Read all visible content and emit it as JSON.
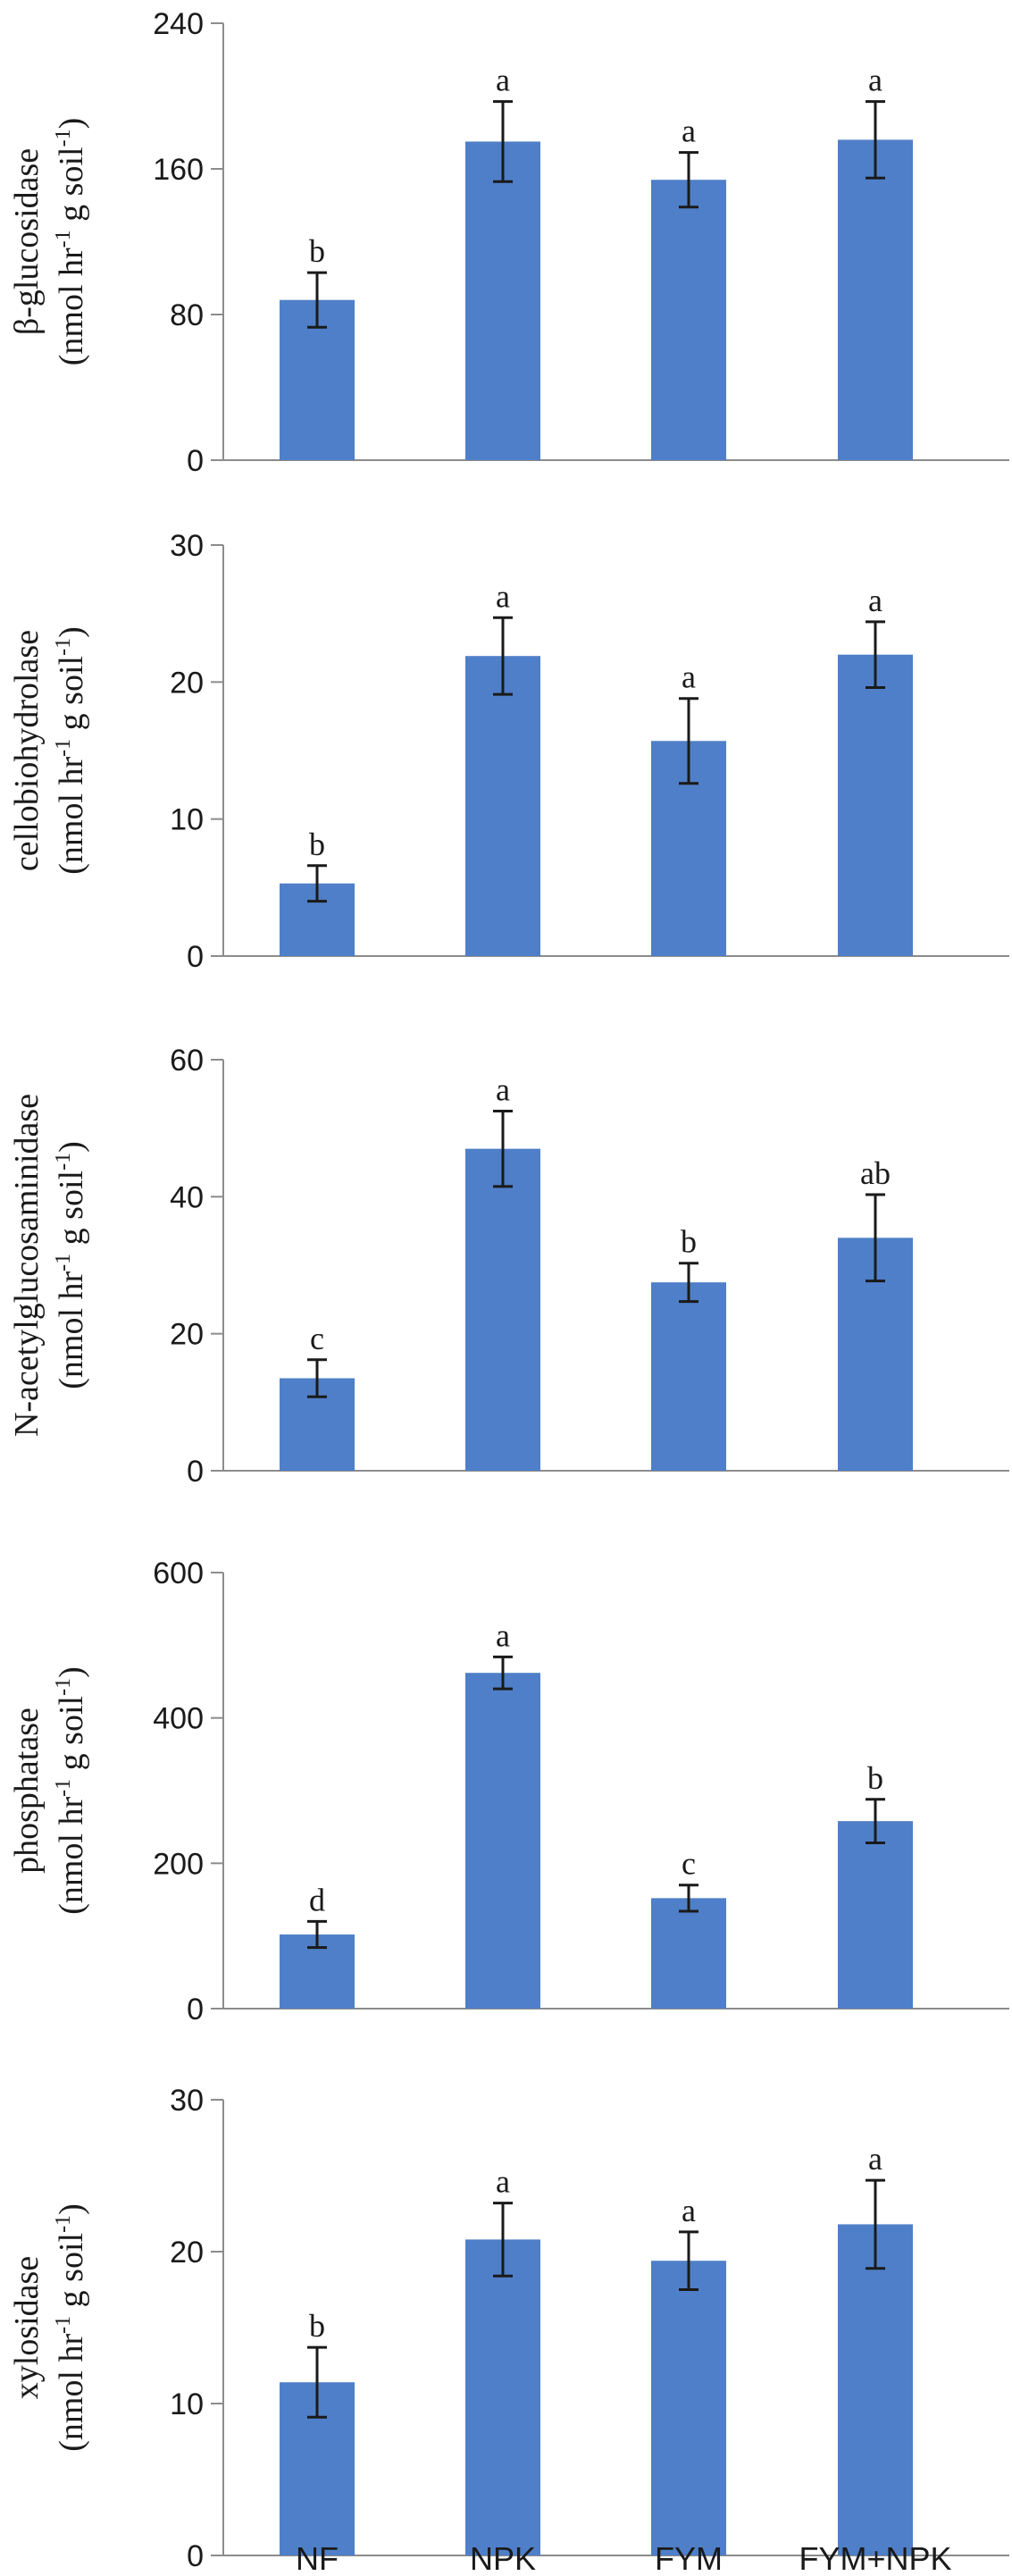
{
  "colors": {
    "bar": "#4f7fc8",
    "axis": "#8c8c8c",
    "text": "#1a1a1a"
  },
  "chart_data": [
    {
      "type": "bar",
      "categories": [
        "NF",
        "NPK",
        "FYM",
        "FYM+NPK"
      ],
      "ylabel": {
        "name": "β-glucosidase",
        "unit_prefix": "(nmol hr",
        "unit_mid": " g soil",
        "unit_suffix": ")",
        "sup1": "-1",
        "sup2": "-1"
      },
      "ylim": [
        0,
        240
      ],
      "yticks": [
        0,
        80,
        160,
        240
      ],
      "values": [
        88,
        175,
        154,
        176
      ],
      "errors": [
        15,
        22,
        15,
        21
      ],
      "letters": [
        "b",
        "a",
        "a",
        "a"
      ]
    },
    {
      "type": "bar",
      "categories": [
        "NF",
        "NPK",
        "FYM",
        "FYM+NPK"
      ],
      "ylabel": {
        "name": "cellobiohydrolase",
        "unit_prefix": "(nmol hr",
        "unit_mid": " g soil",
        "unit_suffix": ")",
        "sup1": "-1",
        "sup2": "-1"
      },
      "ylim": [
        0,
        30
      ],
      "yticks": [
        0,
        10,
        20,
        30
      ],
      "values": [
        5.3,
        21.9,
        15.7,
        22.0
      ],
      "errors": [
        1.3,
        2.8,
        3.1,
        2.4
      ],
      "letters": [
        "b",
        "a",
        "a",
        "a"
      ]
    },
    {
      "type": "bar",
      "categories": [
        "NF",
        "NPK",
        "FYM",
        "FYM+NPK"
      ],
      "ylabel": {
        "name": "N-acetylglucosaminidase",
        "unit_prefix": "(nmol hr",
        "unit_mid": " g soil",
        "unit_suffix": ")",
        "sup1": "-1",
        "sup2": "-1"
      },
      "ylim": [
        0,
        60
      ],
      "yticks": [
        0,
        20,
        40,
        60
      ],
      "values": [
        13.5,
        47.0,
        27.5,
        34.0
      ],
      "errors": [
        2.7,
        5.5,
        2.8,
        6.3
      ],
      "letters": [
        "c",
        "a",
        "b",
        "ab"
      ]
    },
    {
      "type": "bar",
      "categories": [
        "NF",
        "NPK",
        "FYM",
        "FYM+NPK"
      ],
      "ylabel": {
        "name": "phosphatase",
        "unit_prefix": "(nmol hr",
        "unit_mid": " g soil",
        "unit_suffix": ")",
        "sup1": "-1",
        "sup2": "-1"
      },
      "ylim": [
        0,
        600
      ],
      "yticks": [
        0,
        200,
        400,
        600
      ],
      "values": [
        102,
        462,
        152,
        258
      ],
      "errors": [
        18,
        22,
        18,
        30
      ],
      "letters": [
        "d",
        "a",
        "c",
        "b"
      ]
    },
    {
      "type": "bar",
      "categories": [
        "NF",
        "NPK",
        "FYM",
        "FYM+NPK"
      ],
      "ylabel": {
        "name": "xylosidase",
        "unit_prefix": "(nmol hr",
        "unit_mid": " g soil",
        "unit_suffix": ")",
        "sup1": "-1",
        "sup2": "-1"
      },
      "ylim": [
        0,
        30
      ],
      "yticks": [
        0,
        10,
        20,
        30
      ],
      "values": [
        11.4,
        20.8,
        19.4,
        21.8
      ],
      "errors": [
        2.3,
        2.4,
        1.9,
        2.9
      ],
      "letters": [
        "b",
        "a",
        "a",
        "a"
      ]
    }
  ]
}
